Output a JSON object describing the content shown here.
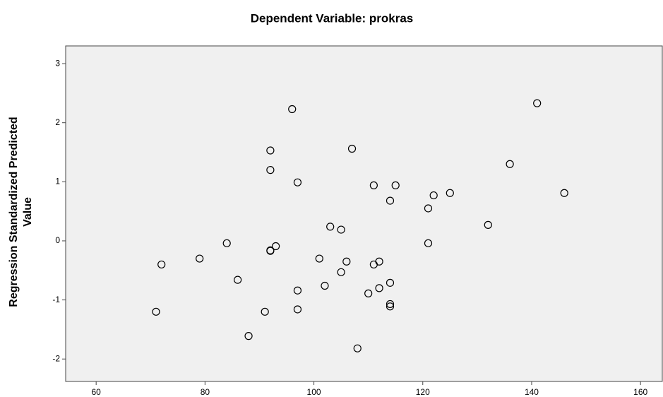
{
  "chart_data": {
    "type": "scatter",
    "title": "Dependent Variable: prokras",
    "y_label": [
      "Regression Standardized Predicted",
      "Value"
    ],
    "x": [
      96,
      141,
      92,
      107,
      92,
      136,
      97,
      111,
      115,
      114,
      122,
      125,
      146,
      121,
      132,
      103,
      105,
      84,
      121,
      93,
      92,
      92,
      79,
      72,
      101,
      106,
      112,
      111,
      105,
      86,
      114,
      102,
      112,
      97,
      110,
      114,
      114,
      71,
      91,
      97,
      88,
      108
    ],
    "values": [
      2.23,
      2.33,
      1.53,
      1.56,
      1.2,
      1.3,
      0.99,
      0.94,
      0.94,
      0.68,
      0.77,
      0.81,
      0.81,
      0.55,
      0.27,
      0.24,
      0.19,
      -0.04,
      -0.04,
      -0.09,
      -0.17,
      -0.16,
      -0.3,
      -0.4,
      -0.3,
      -0.35,
      -0.35,
      -0.4,
      -0.53,
      -0.66,
      -0.71,
      -0.76,
      -0.8,
      -0.84,
      -0.89,
      -1.07,
      -1.11,
      -1.2,
      -1.2,
      -1.16,
      -1.61,
      -1.82
    ],
    "color": "#000000",
    "xlim": [
      54.4,
      164
    ],
    "ylim": [
      -2.38,
      3.3
    ],
    "xticks": [
      60,
      80,
      100,
      120,
      140,
      160
    ],
    "yticks": [
      -2,
      -1,
      0,
      1,
      2,
      3
    ]
  }
}
